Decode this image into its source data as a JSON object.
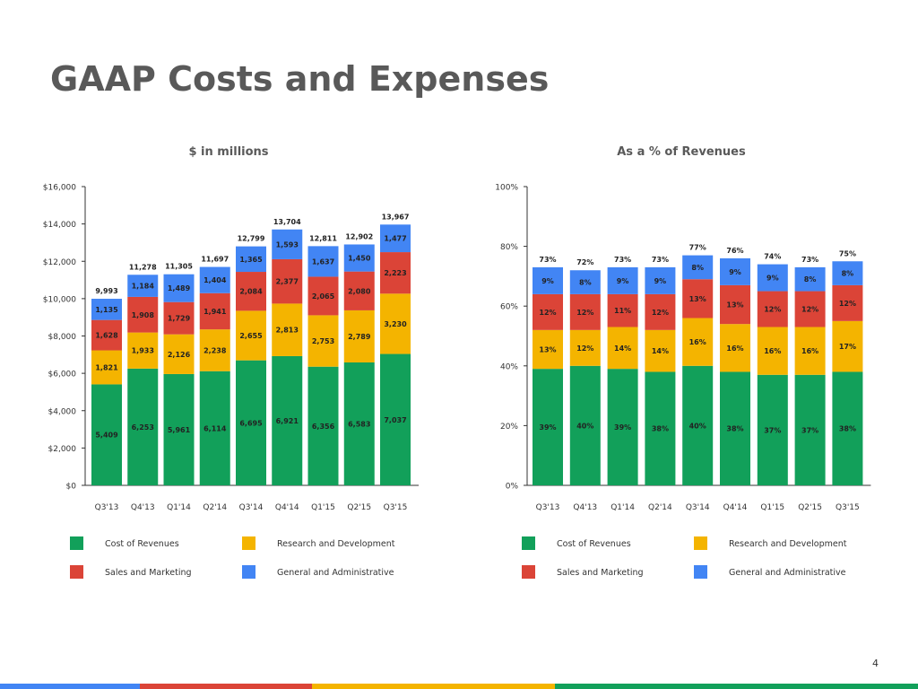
{
  "title": "GAAP Costs and Expenses",
  "page_number": "4",
  "colors": {
    "cost_of_revenues": "#12a05a",
    "research_and_development": "#f4b400",
    "sales_and_marketing": "#db4437",
    "general_and_administrative": "#4285f4"
  },
  "chart_data": [
    {
      "type": "bar",
      "stacked": true,
      "title": "$ in millions",
      "categories": [
        "Q3'13",
        "Q4'13",
        "Q1'14",
        "Q2'14",
        "Q3'14",
        "Q4'14",
        "Q1'15",
        "Q2'15",
        "Q3'15"
      ],
      "ylim": [
        0,
        16000
      ],
      "yticks": [
        "$0",
        "$2,000",
        "$4,000",
        "$6,000",
        "$8,000",
        "$10,000",
        "$12,000",
        "$14,000",
        "$16,000"
      ],
      "grid": false,
      "legend_position": "bottom",
      "series": [
        {
          "name": "Cost of Revenues",
          "color": "#12a05a",
          "values": [
            5409,
            6253,
            5961,
            6114,
            6695,
            6921,
            6356,
            6583,
            7037
          ],
          "labels": [
            "5,409",
            "6,253",
            "5,961",
            "6,114",
            "6,695",
            "6,921",
            "6,356",
            "6,583",
            "7,037"
          ]
        },
        {
          "name": "Research and Development",
          "color": "#f4b400",
          "values": [
            1821,
            1933,
            2126,
            2238,
            2655,
            2813,
            2753,
            2789,
            3230
          ],
          "labels": [
            "1,821",
            "1,933",
            "2,126",
            "2,238",
            "2,655",
            "2,813",
            "2,753",
            "2,789",
            "3,230"
          ]
        },
        {
          "name": "Sales and Marketing",
          "color": "#db4437",
          "values": [
            1628,
            1908,
            1729,
            1941,
            2084,
            2377,
            2065,
            2080,
            2223
          ],
          "labels": [
            "1,628",
            "1,908",
            "1,729",
            "1,941",
            "2,084",
            "2,377",
            "2,065",
            "2,080",
            "2,223"
          ]
        },
        {
          "name": "General and Administrative",
          "color": "#4285f4",
          "values": [
            1135,
            1184,
            1489,
            1404,
            1365,
            1593,
            1637,
            1450,
            1477
          ],
          "labels": [
            "1,135",
            "1,184",
            "1,489",
            "1,404",
            "1,365",
            "1,593",
            "1,637",
            "1,450",
            "1,477"
          ]
        }
      ],
      "totals": [
        "9,993",
        "11,278",
        "11,305",
        "11,697",
        "12,799",
        "13,704",
        "12,811",
        "12,902",
        "13,967"
      ]
    },
    {
      "type": "bar",
      "stacked": true,
      "title": "As a % of Revenues",
      "categories": [
        "Q3'13",
        "Q4'13",
        "Q1'14",
        "Q2'14",
        "Q3'14",
        "Q4'14",
        "Q1'15",
        "Q2'15",
        "Q3'15"
      ],
      "ylim": [
        0,
        100
      ],
      "yticks": [
        "0%",
        "20%",
        "40%",
        "60%",
        "80%",
        "100%"
      ],
      "grid": false,
      "legend_position": "bottom",
      "series": [
        {
          "name": "Cost of Revenues",
          "color": "#12a05a",
          "values": [
            39,
            40,
            39,
            38,
            40,
            38,
            37,
            37,
            38
          ],
          "labels": [
            "39%",
            "40%",
            "39%",
            "38%",
            "40%",
            "38%",
            "37%",
            "37%",
            "38%"
          ]
        },
        {
          "name": "Research and Development",
          "color": "#f4b400",
          "values": [
            13,
            12,
            14,
            14,
            16,
            16,
            16,
            16,
            17
          ],
          "labels": [
            "13%",
            "12%",
            "14%",
            "14%",
            "16%",
            "16%",
            "16%",
            "16%",
            "17%"
          ]
        },
        {
          "name": "Sales and Marketing",
          "color": "#db4437",
          "values": [
            12,
            12,
            11,
            12,
            13,
            13,
            12,
            12,
            12
          ],
          "labels": [
            "12%",
            "12%",
            "11%",
            "12%",
            "13%",
            "13%",
            "12%",
            "12%",
            "12%"
          ]
        },
        {
          "name": "General and Administrative",
          "color": "#4285f4",
          "values": [
            9,
            8,
            9,
            9,
            8,
            9,
            9,
            8,
            8
          ],
          "labels": [
            "9%",
            "8%",
            "9%",
            "9%",
            "8%",
            "9%",
            "9%",
            "8%",
            "8%"
          ]
        }
      ],
      "totals": [
        "73%",
        "72%",
        "73%",
        "73%",
        "77%",
        "76%",
        "74%",
        "73%",
        "75%"
      ]
    }
  ]
}
